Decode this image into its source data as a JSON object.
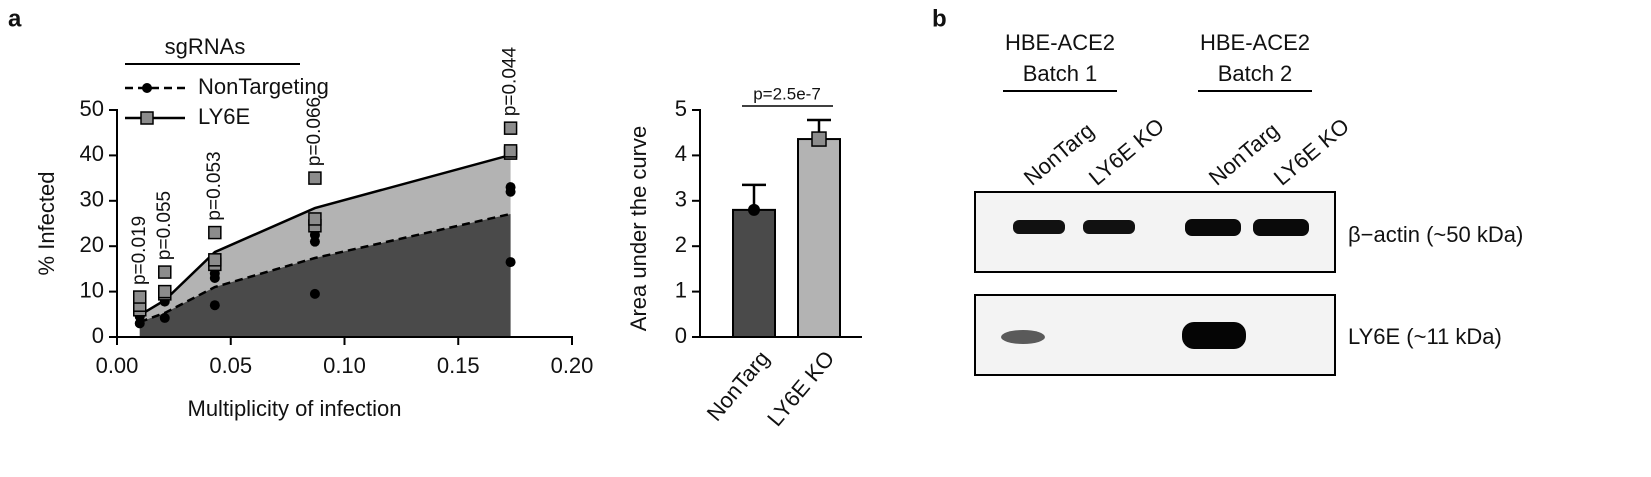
{
  "panels": [
    "a",
    "b"
  ],
  "chart_data": [
    {
      "type": "line",
      "xlabel": "Multiplicity of infection",
      "ylabel": "% Infected",
      "legend_title": "sgRNAs",
      "x": [
        0.01,
        0.021,
        0.043,
        0.087,
        0.173
      ],
      "xlim": [
        0,
        0.2
      ],
      "xticks": [
        {
          "value": 0,
          "label": "0.00"
        },
        {
          "value": 0.05,
          "label": "0.05"
        },
        {
          "value": 0.1,
          "label": "0.10"
        },
        {
          "value": 0.15,
          "label": "0.15"
        },
        {
          "value": 0.2,
          "label": "0.20"
        }
      ],
      "ylim": [
        0,
        50
      ],
      "yticks": [
        0,
        10,
        20,
        30,
        40,
        50
      ],
      "series": [
        {
          "name": "NonTargeting",
          "color": "#4a4a4a",
          "marker_color": "#000000",
          "dashed": true,
          "marker": "circle",
          "values": [
            3.3,
            5.3,
            11,
            17.4,
            27.1
          ],
          "replicates": [
            [
              3,
              4.5,
              5.5
            ],
            [
              4.2,
              7.8,
              8.4
            ],
            [
              7,
              13,
              14
            ],
            [
              9.5,
              21,
              22.5
            ],
            [
              16.5,
              32,
              33
            ]
          ]
        },
        {
          "name": "LY6E",
          "color": "#b3b3b3",
          "marker_color": "#8c8c8c",
          "dashed": false,
          "marker": "square",
          "values": [
            4.8,
            8.1,
            18.7,
            28.4,
            40.1
          ],
          "replicates": [
            [
              6,
              7,
              8.8
            ],
            [
              9.5,
              10,
              14.3
            ],
            [
              16,
              17,
              23
            ],
            [
              24.5,
              26,
              35
            ],
            [
              40.5,
              41,
              46
            ]
          ]
        }
      ],
      "annotations": [
        "p=0.019",
        "p=0.055",
        "p=0.053",
        "p=0.066",
        "p=0.044"
      ]
    },
    {
      "type": "bar",
      "ylabel": "Area under the curve",
      "categories": [
        "NonTarg",
        "LY6E KO"
      ],
      "values": [
        2.8,
        4.36
      ],
      "errors": [
        0.55,
        0.42
      ],
      "colors": [
        "#4a4a4a",
        "#b3b3b3"
      ],
      "ylim": [
        0,
        5
      ],
      "yticks": [
        0,
        1,
        2,
        3,
        4,
        5
      ],
      "annotation": "p=2.5e-7"
    }
  ],
  "blot": {
    "headers": [
      [
        "HBE-ACE2",
        "Batch 1"
      ],
      [
        "HBE-ACE2",
        "Batch 2"
      ]
    ],
    "lanes": [
      "NonTarg",
      "LY6E KO",
      "NonTarg",
      "LY6E KO"
    ],
    "bands": [
      "β−actin (~50 kDa)",
      "LY6E (~11 kDa)"
    ]
  }
}
